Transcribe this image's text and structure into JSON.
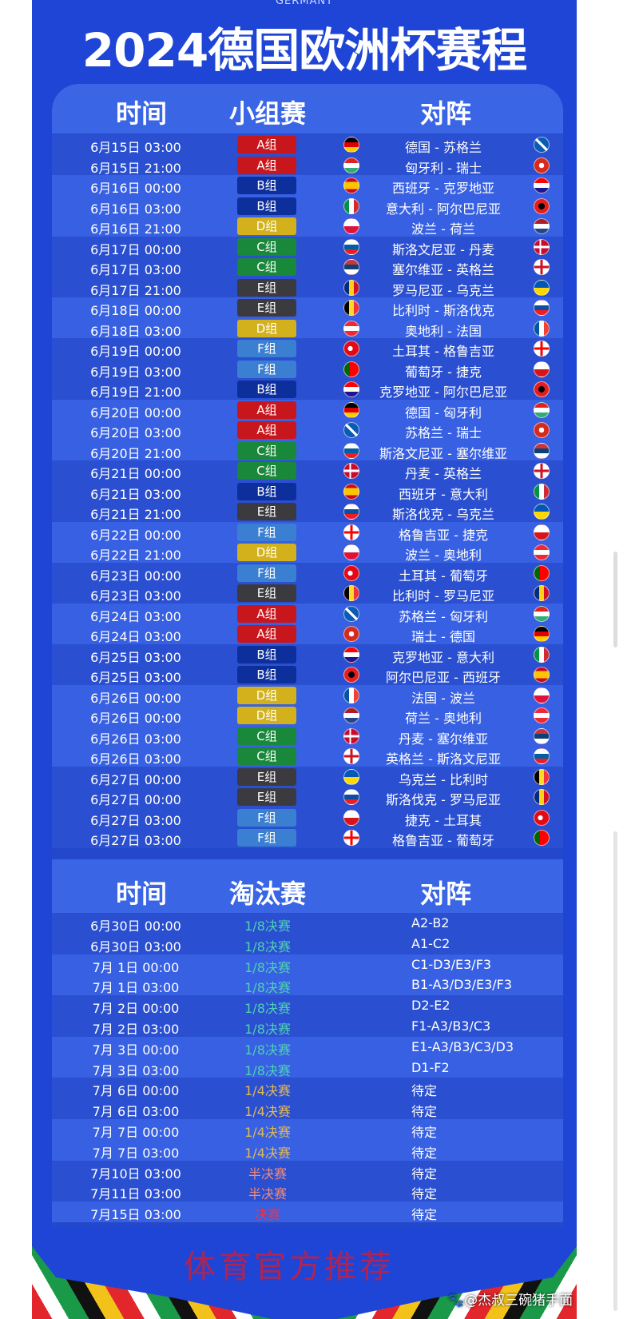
{
  "header": {
    "subtitle": "GERMANY",
    "title": "2024德国欧洲杯赛程"
  },
  "group_stage": {
    "columns": [
      "时间",
      "小组赛",
      "对阵"
    ],
    "rows": [
      {
        "time": "6月15日 03:00",
        "group": "A组",
        "match": "德国 - 苏格兰",
        "flags": [
          "germany-flag-icon",
          "scotland-flag-icon"
        ]
      },
      {
        "time": "6月15日 21:00",
        "group": "A组",
        "match": "匈牙利 - 瑞士",
        "flags": [
          "hungary-flag-icon",
          "switzerland-flag-icon"
        ]
      },
      {
        "time": "6月16日 00:00",
        "group": "B组",
        "match": "西班牙 - 克罗地亚",
        "flags": [
          "spain-flag-icon",
          "croatia-flag-icon"
        ]
      },
      {
        "time": "6月16日 03:00",
        "group": "B组",
        "match": "意大利 - 阿尔巴尼亚",
        "flags": [
          "italy-flag-icon",
          "albania-flag-icon"
        ]
      },
      {
        "time": "6月16日 21:00",
        "group": "D组",
        "match": "波兰 - 荷兰",
        "flags": [
          "poland-flag-icon",
          "netherlands-flag-icon"
        ]
      },
      {
        "time": "6月17日 00:00",
        "group": "C组",
        "match": "斯洛文尼亚 - 丹麦",
        "flags": [
          "slovenia-flag-icon",
          "denmark-flag-icon"
        ]
      },
      {
        "time": "6月17日 03:00",
        "group": "C组",
        "match": "塞尔维亚 - 英格兰",
        "flags": [
          "serbia-flag-icon",
          "england-flag-icon"
        ]
      },
      {
        "time": "6月17日 21:00",
        "group": "E组",
        "match": "罗马尼亚 - 乌克兰",
        "flags": [
          "romania-flag-icon",
          "ukraine-flag-icon"
        ]
      },
      {
        "time": "6月18日 00:00",
        "group": "E组",
        "match": "比利时 - 斯洛伐克",
        "flags": [
          "belgium-flag-icon",
          "slovakia-flag-icon"
        ]
      },
      {
        "time": "6月18日 03:00",
        "group": "D组",
        "match": "奥地利 - 法国",
        "flags": [
          "austria-flag-icon",
          "france-flag-icon"
        ]
      },
      {
        "time": "6月19日 00:00",
        "group": "F组",
        "match": "土耳其 - 格鲁吉亚",
        "flags": [
          "turkey-flag-icon",
          "georgia-flag-icon"
        ]
      },
      {
        "time": "6月19日 03:00",
        "group": "F组",
        "match": "葡萄牙 - 捷克",
        "flags": [
          "portugal-flag-icon",
          "czech-flag-icon"
        ]
      },
      {
        "time": "6月19日 21:00",
        "group": "B组",
        "match": "克罗地亚 - 阿尔巴尼亚",
        "flags": [
          "croatia-flag-icon",
          "albania-flag-icon"
        ]
      },
      {
        "time": "6月20日 00:00",
        "group": "A组",
        "match": "德国 - 匈牙利",
        "flags": [
          "germany-flag-icon",
          "hungary-flag-icon"
        ]
      },
      {
        "time": "6月20日 03:00",
        "group": "A组",
        "match": "苏格兰 - 瑞士",
        "flags": [
          "scotland-flag-icon",
          "switzerland-flag-icon"
        ]
      },
      {
        "time": "6月20日 21:00",
        "group": "C组",
        "match": "斯洛文尼亚 - 塞尔维亚",
        "flags": [
          "slovenia-flag-icon",
          "serbia-flag-icon"
        ]
      },
      {
        "time": "6月21日 00:00",
        "group": "C组",
        "match": "丹麦 - 英格兰",
        "flags": [
          "denmark-flag-icon",
          "england-flag-icon"
        ]
      },
      {
        "time": "6月21日 03:00",
        "group": "B组",
        "match": "西班牙 - 意大利",
        "flags": [
          "spain-flag-icon",
          "italy-flag-icon"
        ]
      },
      {
        "time": "6月21日 21:00",
        "group": "E组",
        "match": "斯洛伐克 - 乌克兰",
        "flags": [
          "slovakia-flag-icon",
          "ukraine-flag-icon"
        ]
      },
      {
        "time": "6月22日 00:00",
        "group": "F组",
        "match": "格鲁吉亚 - 捷克",
        "flags": [
          "georgia-flag-icon",
          "czech-flag-icon"
        ],
        "overlay": {
          "time": "6月22日 21:00",
          "group": "D组",
          "match": "波兰 - 奥地利",
          "flags": [
            "poland-flag-icon",
            "austria-flag-icon"
          ]
        }
      },
      {
        "time": "6月23日 00:00",
        "group": "F组",
        "match": "土耳其 - 葡萄牙",
        "flags": [
          "turkey-flag-icon",
          "portugal-flag-icon"
        ]
      },
      {
        "time": "6月23日 03:00",
        "group": "E组",
        "match": "比利时 - 罗马尼亚",
        "flags": [
          "belgium-flag-icon",
          "romania-flag-icon"
        ]
      },
      {
        "time": "6月24日 03:00",
        "group": "A组",
        "match": "苏格兰 - 匈牙利",
        "flags": [
          "scotland-flag-icon",
          "hungary-flag-icon"
        ]
      },
      {
        "time": "6月24日 03:00",
        "group": "A组",
        "match": "瑞士 - 德国",
        "flags": [
          "switzerland-flag-icon",
          "germany-flag-icon"
        ]
      },
      {
        "time": "6月25日 03:00",
        "group": "B组",
        "match": "克罗地亚 - 意大利",
        "flags": [
          "croatia-flag-icon",
          "italy-flag-icon"
        ]
      },
      {
        "time": "6月25日 03:00",
        "group": "B组",
        "match": "阿尔巴尼亚 - 西班牙",
        "flags": [
          "albania-flag-icon",
          "spain-flag-icon"
        ]
      },
      {
        "time": "6月26日 00:00",
        "group": "D组",
        "match": "法国 - 波兰",
        "flags": [
          "france-flag-icon",
          "poland-flag-icon"
        ]
      },
      {
        "time": "6月26日 00:00",
        "group": "D组",
        "match": "荷兰 - 奥地利",
        "flags": [
          "netherlands-flag-icon",
          "austria-flag-icon"
        ]
      },
      {
        "time": "6月26日 03:00",
        "group": "C组",
        "match": "丹麦 - 塞尔维亚",
        "flags": [
          "denmark-flag-icon",
          "serbia-flag-icon"
        ]
      },
      {
        "time": "6月26日 03:00",
        "group": "C组",
        "match": "英格兰 - 斯洛文尼亚",
        "flags": [
          "england-flag-icon",
          "slovenia-flag-icon"
        ]
      },
      {
        "time": "6月27日 00:00",
        "group": "E组",
        "match": "乌克兰 - 比利时",
        "flags": [
          "ukraine-flag-icon",
          "belgium-flag-icon"
        ]
      },
      {
        "time": "6月27日 00:00",
        "group": "E组",
        "match": "斯洛伐克 - 罗马尼亚",
        "flags": [
          "slovakia-flag-icon",
          "romania-flag-icon"
        ]
      },
      {
        "time": "6月27日 03:00",
        "group": "F组",
        "match": "捷克 - 土耳其",
        "flags": [
          "czech-flag-icon",
          "turkey-flag-icon"
        ]
      },
      {
        "time": "6月27日 03:00",
        "group": "F组",
        "match": "格鲁吉亚 - 葡萄牙",
        "flags": [
          "georgia-flag-icon",
          "portugal-flag-icon"
        ]
      }
    ]
  },
  "group_colors": {
    "A组": "#c8161d",
    "B组": "#0d2f9c",
    "C组": "#19883a",
    "D组": "#d2b11c",
    "E组": "#3b3b3f",
    "F组": "#3a7fd2"
  },
  "knockout": {
    "columns": [
      "时间",
      "淘汰赛",
      "对阵"
    ],
    "rows": [
      {
        "time": "6月30日 00:00",
        "round": "1/8决赛",
        "match": "A2-B2"
      },
      {
        "time": "6月30日 03:00",
        "round": "1/8决赛",
        "match": "A1-C2"
      },
      {
        "time": "7月  1日 00:00",
        "round": "1/8决赛",
        "match": "C1-D3/E3/F3"
      },
      {
        "time": "7月  1日 03:00",
        "round": "1/8决赛",
        "match": "B1-A3/D3/E3/F3"
      },
      {
        "time": "7月  2日 00:00",
        "round": "1/8决赛",
        "match": "D2-E2"
      },
      {
        "time": "7月  2日 03:00",
        "round": "1/8决赛",
        "match": "F1-A3/B3/C3"
      },
      {
        "time": "7月  3日 00:00",
        "round": "1/8决赛",
        "match": "E1-A3/B3/C3/D3"
      },
      {
        "time": "7月  3日 03:00",
        "round": "1/8决赛",
        "match": "D1-F2"
      },
      {
        "time": "7月  6日 00:00",
        "round": "1/4决赛",
        "match": "待定"
      },
      {
        "time": "7月  6日 03:00",
        "round": "1/4决赛",
        "match": "待定"
      },
      {
        "time": "7月  7日 00:00",
        "round": "1/4决赛",
        "match": "待定"
      },
      {
        "time": "7月  7日 03:00",
        "round": "1/4决赛",
        "match": "待定"
      },
      {
        "time": "7月10日 03:00",
        "round": "半决赛",
        "match": "待定"
      },
      {
        "time": "7月11日 03:00",
        "round": "半决赛",
        "match": "待定"
      },
      {
        "time": "7月15日 03:00",
        "round": "决赛",
        "match": "待定"
      }
    ]
  },
  "round_colors": {
    "1/8决赛": "#4fd0b4",
    "1/4决赛": "#e0b85a",
    "半决赛": "#f08a7a",
    "决赛": "#e8364a"
  },
  "watermark": {
    "text": "体育官方推荐",
    "author": "@杰叔三碗猪手面",
    "author_icon": "paw-icon"
  }
}
